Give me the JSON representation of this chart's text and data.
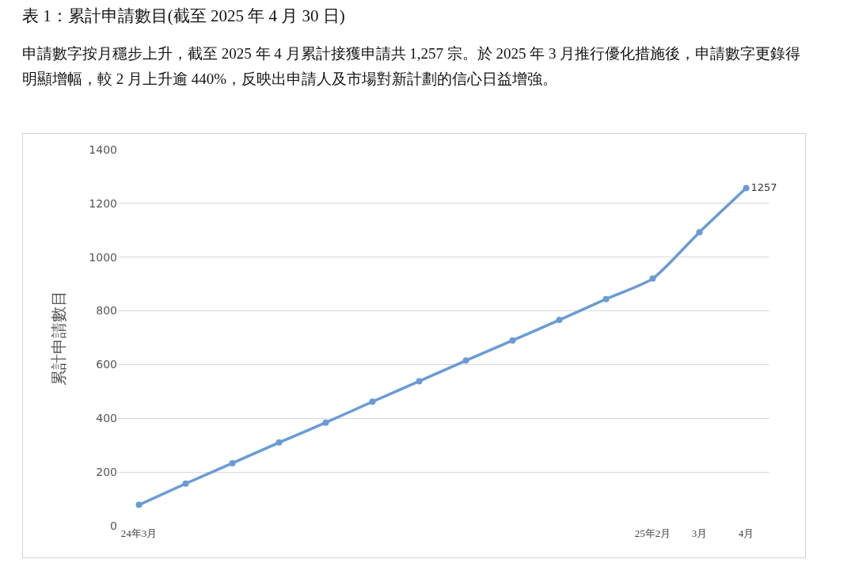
{
  "chart_data": {
    "type": "line",
    "title": "表 1：累計申請數目(截至 2025 年 4 月 30 日)",
    "subtitle": "申請數字按月穩步上升，截至 2025 年 4 月累計接獲申請共 1,257 宗。於 2025 年 3 月推行優化措施後，申請數字更錄得明顯增幅，較 2 月上升逾 440%，反映出申請人及市場對新計劃的信心日益增強。",
    "ylabel": "累計申請數目",
    "categories": [
      "24年3月",
      null,
      null,
      null,
      null,
      null,
      null,
      null,
      null,
      null,
      null,
      "25年2月",
      "3月",
      "4月"
    ],
    "series": [
      {
        "color": "#6a9bd6",
        "values": [
          78,
          157,
          233,
          310,
          384,
          462,
          538,
          615,
          690,
          766,
          844,
          920,
          1093,
          1257
        ],
        "value_labels": [
          null,
          null,
          null,
          null,
          null,
          null,
          null,
          null,
          null,
          null,
          null,
          null,
          null,
          "1257"
        ]
      }
    ],
    "ylim": [
      0,
      1400
    ],
    "yticks": [
      0,
      200,
      400,
      600,
      800,
      1000,
      1200,
      1400
    ],
    "grid": "y",
    "marker": "circle",
    "line_style": "solid"
  }
}
